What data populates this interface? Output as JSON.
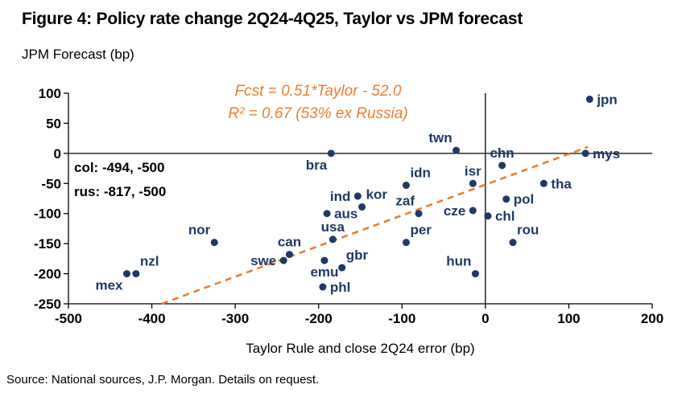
{
  "title": "Figure 4: Policy rate change 2Q24-4Q25, Taylor vs JPM forecast",
  "y_axis_title": "JPM Forecast (bp)",
  "x_axis_title": "Taylor Rule and close 2Q24 error (bp)",
  "source": "Source: National sources, J.P. Morgan. Details on request.",
  "annotations": {
    "fit_line1": "Fcst = 0.51*Taylor - 52.0",
    "fit_line2": "R² = 0.67 (53% ex Russia)",
    "outlier_line1": "col: -494, -500",
    "outlier_line2": "rus: -817, -500"
  },
  "colors": {
    "point": "#1F3864",
    "point_label": "#1F3864",
    "trend": "#ED7D31",
    "annotation": "#ED7D31",
    "axis": "#000000"
  },
  "chart_data": {
    "type": "scatter",
    "title": "Figure 4: Policy rate change 2Q24-4Q25, Taylor vs JPM forecast",
    "xlabel": "Taylor Rule and close 2Q24 error (bp)",
    "ylabel": "JPM Forecast (bp)",
    "xlim": [
      -500,
      200
    ],
    "ylim": [
      -250,
      100
    ],
    "x_ticks": [
      -500,
      -400,
      -300,
      -200,
      -100,
      0,
      100,
      200
    ],
    "y_ticks": [
      100,
      50,
      0,
      -50,
      -100,
      -150,
      -200,
      -250
    ],
    "grid": false,
    "trend": {
      "label": "Fcst = 0.51*Taylor - 52.0",
      "r_squared": "R² = 0.67 (53% ex Russia)",
      "slope": 0.51,
      "intercept": -52.0,
      "x_start": -388,
      "x_end": 123,
      "style": "dashed"
    },
    "excluded_outliers": [
      {
        "name": "col",
        "x": -494,
        "y": -500
      },
      {
        "name": "rus",
        "x": -817,
        "y": -500
      }
    ],
    "points": [
      {
        "name": "jpn",
        "x": 125,
        "y": 90,
        "lbl": "right"
      },
      {
        "name": "mys",
        "x": 120,
        "y": 0,
        "lbl": "right"
      },
      {
        "name": "twn",
        "x": -35,
        "y": 5,
        "lbl": "above-left"
      },
      {
        "name": "chn",
        "x": 20,
        "y": -20,
        "lbl": "above"
      },
      {
        "name": "bra",
        "x": -185,
        "y": 0,
        "lbl": "below-left"
      },
      {
        "name": "isr",
        "x": -15,
        "y": -50,
        "lbl": "above"
      },
      {
        "name": "tha",
        "x": 70,
        "y": -50,
        "lbl": "right"
      },
      {
        "name": "idn",
        "x": -95,
        "y": -53,
        "lbl": "above-right"
      },
      {
        "name": "ind",
        "x": -153,
        "y": -71,
        "lbl": "left"
      },
      {
        "name": "kor",
        "x": -148,
        "y": -89,
        "lbl": "above-right"
      },
      {
        "name": "pol",
        "x": 25,
        "y": -76,
        "lbl": "right"
      },
      {
        "name": "zaf",
        "x": -80,
        "y": -100,
        "lbl": "above-left"
      },
      {
        "name": "cze",
        "x": -15,
        "y": -95,
        "lbl": "left"
      },
      {
        "name": "chl",
        "x": 3,
        "y": -104,
        "lbl": "right"
      },
      {
        "name": "aus",
        "x": -190,
        "y": -100,
        "lbl": "right"
      },
      {
        "name": "nor",
        "x": -325,
        "y": -148,
        "lbl": "above-left"
      },
      {
        "name": "rou",
        "x": 33,
        "y": -148,
        "lbl": "above-right"
      },
      {
        "name": "usa",
        "x": -183,
        "y": -143,
        "lbl": "above"
      },
      {
        "name": "per",
        "x": -95,
        "y": -148,
        "lbl": "above-right"
      },
      {
        "name": "can",
        "x": -235,
        "y": -168,
        "lbl": "above"
      },
      {
        "name": "swe",
        "x": -242,
        "y": -178,
        "lbl": "left"
      },
      {
        "name": "emu",
        "x": -193,
        "y": -178,
        "lbl": "below"
      },
      {
        "name": "gbr",
        "x": -172,
        "y": -190,
        "lbl": "above-right"
      },
      {
        "name": "hun",
        "x": -12,
        "y": -200,
        "lbl": "above-left"
      },
      {
        "name": "mex",
        "x": -430,
        "y": -200,
        "lbl": "below-left"
      },
      {
        "name": "nzl",
        "x": -419,
        "y": -200,
        "lbl": "above-right"
      },
      {
        "name": "phl",
        "x": -195,
        "y": -222,
        "lbl": "right"
      }
    ]
  }
}
